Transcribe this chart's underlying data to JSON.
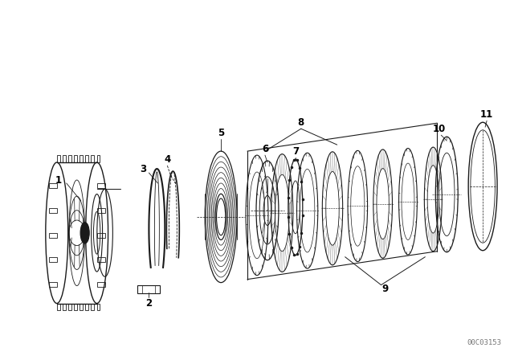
{
  "background_color": "#ffffff",
  "line_color": "#1a1a1a",
  "watermark": "00C03153",
  "watermark_fontsize": 6.5,
  "figsize": [
    6.4,
    4.48
  ],
  "dpi": 100,
  "label_fontsize": 8.5
}
